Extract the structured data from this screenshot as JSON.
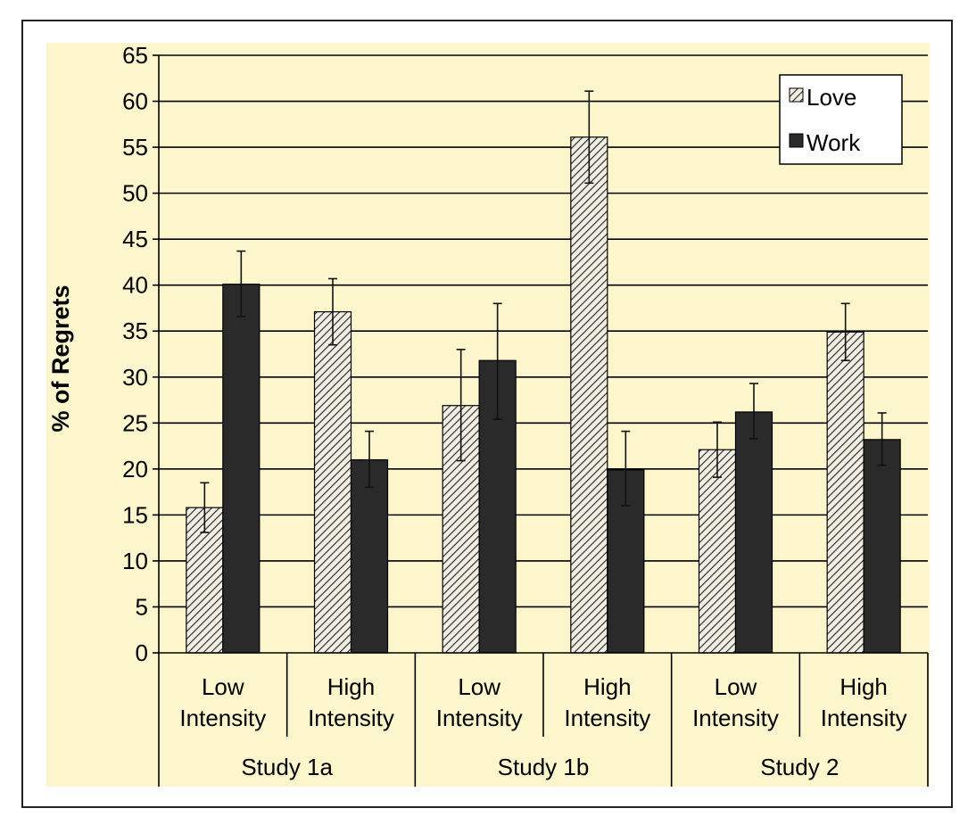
{
  "chart_data": {
    "type": "bar",
    "ylabel": "% of Regrets",
    "ylim": [
      0,
      65
    ],
    "yticks": [
      0,
      5,
      10,
      15,
      20,
      25,
      30,
      35,
      40,
      45,
      50,
      55,
      60,
      65
    ],
    "grid": true,
    "legend_position": "top-right",
    "groups": [
      {
        "label": "Study 1a",
        "categories": [
          {
            "line1": "Low",
            "line2": "Intensity"
          },
          {
            "line1": "High",
            "line2": "Intensity"
          }
        ]
      },
      {
        "label": "Study 1b",
        "categories": [
          {
            "line1": "Low",
            "line2": "Intensity"
          },
          {
            "line1": "High",
            "line2": "Intensity"
          }
        ]
      },
      {
        "label": "Study 2",
        "categories": [
          {
            "line1": "Low",
            "line2": "Intensity"
          },
          {
            "line1": "High",
            "line2": "Intensity"
          }
        ]
      }
    ],
    "series": [
      {
        "name": "Love",
        "pattern": "hatched",
        "values": [
          15.8,
          37.1,
          26.9,
          56.1,
          22.1,
          34.9
        ],
        "error_low": [
          13.1,
          33.5,
          20.9,
          51.1,
          19.1,
          31.8
        ],
        "error_high": [
          18.5,
          40.7,
          33.0,
          61.1,
          25.1,
          38.0
        ]
      },
      {
        "name": "Work",
        "pattern": "solid",
        "values": [
          40.1,
          21.0,
          31.8,
          19.9,
          26.2,
          23.2
        ],
        "error_low": [
          36.6,
          18.0,
          25.4,
          16.0,
          23.3,
          20.4
        ],
        "error_high": [
          43.7,
          24.1,
          38.0,
          24.1,
          29.3,
          26.1
        ]
      }
    ],
    "colors": {
      "background": "#fdf6cc",
      "work_bar": "#2a2a2a",
      "love_base": "#f0eee2",
      "hatch": "#222222",
      "grid": "#000000"
    }
  }
}
